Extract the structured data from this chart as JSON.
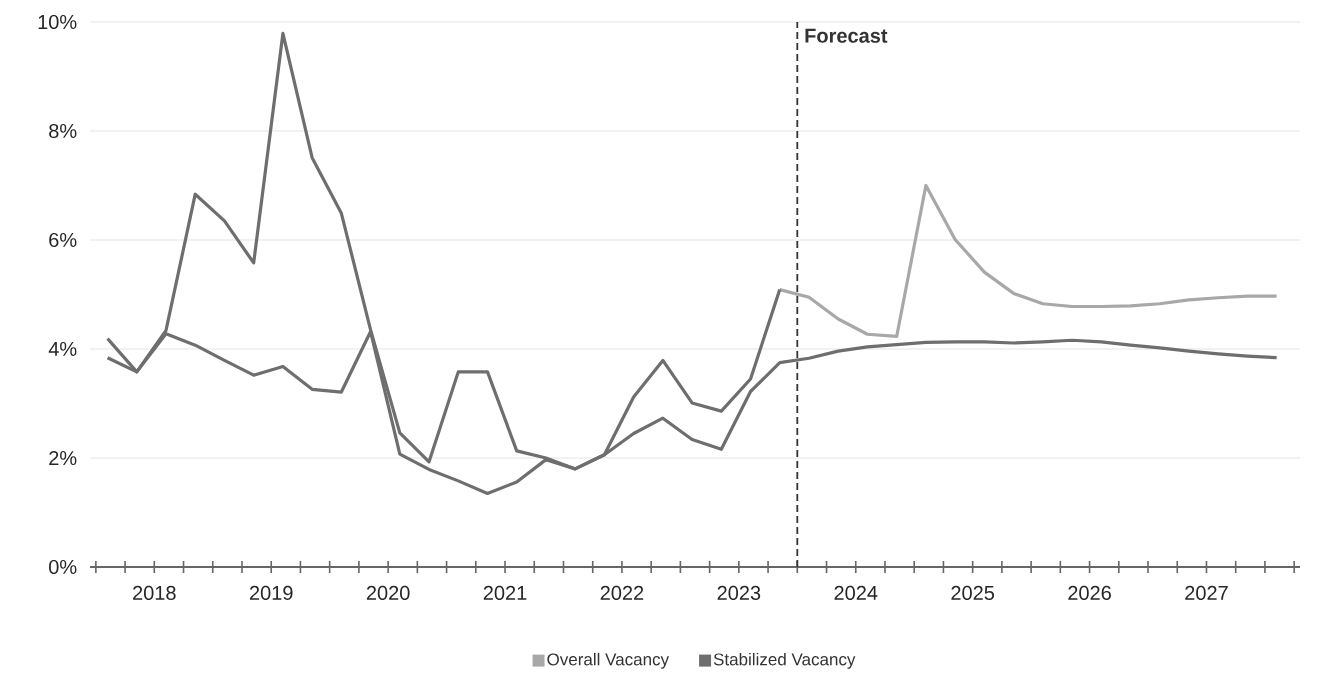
{
  "chart_data": {
    "type": "line",
    "x": [
      2018.1,
      2018.35,
      2018.6,
      2018.85,
      2019.1,
      2019.35,
      2019.6,
      2019.85,
      2020.1,
      2020.35,
      2020.6,
      2020.85,
      2021.1,
      2021.35,
      2021.6,
      2021.85,
      2022.1,
      2022.35,
      2022.6,
      2022.85,
      2023.1,
      2023.35,
      2023.6,
      2023.85,
      2024.1,
      2024.35,
      2024.6,
      2024.85,
      2025.1,
      2025.35,
      2025.6,
      2025.85,
      2026.1,
      2026.35,
      2026.6,
      2026.85,
      2027.1,
      2027.35,
      2027.6,
      2027.85,
      2028.1
    ],
    "series": [
      {
        "name": "Overall Vacancy",
        "color": "#a8a8a8",
        "values": [
          null,
          null,
          null,
          null,
          null,
          null,
          null,
          null,
          null,
          null,
          null,
          null,
          null,
          null,
          null,
          null,
          null,
          null,
          null,
          null,
          null,
          null,
          null,
          5.09,
          4.95,
          4.55,
          4.27,
          4.23,
          7.0,
          6.01,
          5.41,
          5.02,
          4.83,
          4.78,
          4.78,
          4.79,
          4.83,
          4.9,
          4.94,
          4.97,
          4.97
        ]
      },
      {
        "color": "#6e6e6e",
        "values": [
          4.19,
          3.58,
          4.34,
          6.84,
          6.35,
          5.58,
          9.79,
          7.51,
          6.49,
          4.35,
          2.46,
          1.93,
          3.58,
          3.58,
          2.13,
          2.0,
          1.8,
          2.06,
          3.12,
          3.79,
          3.01,
          2.86,
          3.45,
          5.09,
          null,
          null,
          null,
          null,
          null,
          null,
          null,
          null,
          null,
          null,
          null,
          null,
          null,
          null,
          null,
          null,
          null
        ]
      },
      {
        "name": "Stabilized Vacancy",
        "color": "#6e6e6e",
        "values": [
          3.84,
          3.58,
          4.28,
          4.07,
          3.79,
          3.52,
          3.68,
          3.26,
          3.21,
          4.32,
          2.07,
          1.79,
          1.58,
          1.35,
          1.56,
          1.97,
          1.8,
          2.06,
          2.45,
          2.73,
          2.34,
          2.16,
          3.22,
          3.75,
          3.83,
          3.96,
          4.04,
          4.08,
          4.12,
          4.13,
          4.13,
          4.11,
          4.13,
          4.16,
          4.13,
          4.07,
          4.02,
          3.96,
          3.91,
          3.87,
          3.84
        ]
      }
    ],
    "xlim": [
      2017.95,
      2028.3
    ],
    "xticks": [
      {
        "value": 2018,
        "label": null
      },
      {
        "value": 2018.25,
        "label": null
      },
      {
        "value": 2018.5,
        "label": "2018"
      },
      {
        "value": 2018.75,
        "label": null
      },
      {
        "value": 2019,
        "label": null
      },
      {
        "value": 2019.25,
        "label": null
      },
      {
        "value": 2019.5,
        "label": "2019"
      },
      {
        "value": 2019.75,
        "label": null
      },
      {
        "value": 2020,
        "label": null
      },
      {
        "value": 2020.25,
        "label": null
      },
      {
        "value": 2020.5,
        "label": "2020"
      },
      {
        "value": 2020.75,
        "label": null
      },
      {
        "value": 2021,
        "label": null
      },
      {
        "value": 2021.25,
        "label": null
      },
      {
        "value": 2021.5,
        "label": "2021"
      },
      {
        "value": 2021.75,
        "label": null
      },
      {
        "value": 2022,
        "label": null
      },
      {
        "value": 2022.25,
        "label": null
      },
      {
        "value": 2022.5,
        "label": "2022"
      },
      {
        "value": 2022.75,
        "label": null
      },
      {
        "value": 2023,
        "label": null
      },
      {
        "value": 2023.25,
        "label": null
      },
      {
        "value": 2023.5,
        "label": "2023"
      },
      {
        "value": 2023.75,
        "label": null
      },
      {
        "value": 2024,
        "label": null
      },
      {
        "value": 2024.25,
        "label": null
      },
      {
        "value": 2024.5,
        "label": "2024"
      },
      {
        "value": 2024.75,
        "label": null
      },
      {
        "value": 2025,
        "label": null
      },
      {
        "value": 2025.25,
        "label": null
      },
      {
        "value": 2025.5,
        "label": "2025"
      },
      {
        "value": 2025.75,
        "label": null
      },
      {
        "value": 2026,
        "label": null
      },
      {
        "value": 2026.25,
        "label": null
      },
      {
        "value": 2026.5,
        "label": "2026"
      },
      {
        "value": 2026.75,
        "label": null
      },
      {
        "value": 2027,
        "label": null
      },
      {
        "value": 2027.25,
        "label": null
      },
      {
        "value": 2027.5,
        "label": "2027"
      },
      {
        "value": 2027.75,
        "label": null
      },
      {
        "value": 2028,
        "label": null
      },
      {
        "value": 2028.25,
        "label": null
      }
    ],
    "ylim": [
      0,
      10
    ],
    "yticks": [
      {
        "value": 0,
        "label": "0%"
      },
      {
        "value": 2,
        "label": "2%"
      },
      {
        "value": 4,
        "label": "4%"
      },
      {
        "value": 6,
        "label": "6%"
      },
      {
        "value": 8,
        "label": "8%"
      },
      {
        "value": 10,
        "label": "10%"
      }
    ],
    "grid": "y",
    "legend": "bottom",
    "ref_lines": [
      {
        "axis": "x",
        "value": 2024,
        "label": "Forecast",
        "line_style": "dashed",
        "color": "#333333"
      }
    ]
  }
}
